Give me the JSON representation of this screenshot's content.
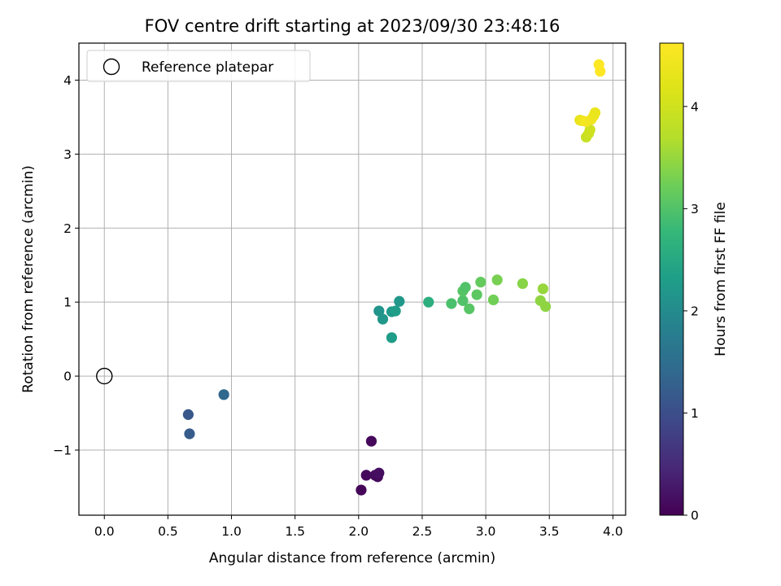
{
  "chart_data": {
    "type": "scatter",
    "title": "FOV centre drift starting at 2023/09/30 23:48:16",
    "xlabel": "Angular distance from reference (arcmin)",
    "ylabel": "Rotation from reference (arcmin)",
    "xlim": [
      -0.2,
      4.1
    ],
    "ylim": [
      -1.88,
      4.5
    ],
    "x_ticks": [
      0.0,
      0.5,
      1.0,
      1.5,
      2.0,
      2.5,
      3.0,
      3.5,
      4.0
    ],
    "x_tick_labels": [
      "0.0",
      "0.5",
      "1.0",
      "1.5",
      "2.0",
      "2.5",
      "3.0",
      "3.5",
      "4.0"
    ],
    "y_ticks": [
      -1,
      0,
      1,
      2,
      3,
      4
    ],
    "y_tick_labels": [
      "−1",
      "0",
      "1",
      "2",
      "3",
      "4"
    ],
    "grid": true,
    "legend": {
      "position": "top-left",
      "entries": [
        {
          "label": "Reference platepar",
          "marker": "open-circle"
        }
      ]
    },
    "reference_point": {
      "x": 0.0,
      "y": 0.0
    },
    "colorbar": {
      "label": "Hours from first FF file",
      "colormap": "viridis",
      "range": [
        0,
        4.62
      ],
      "ticks": [
        0,
        1,
        2,
        3,
        4
      ],
      "tick_labels": [
        "0",
        "1",
        "2",
        "3",
        "4"
      ]
    },
    "points": [
      {
        "x": 2.02,
        "y": -1.54,
        "c": 0.05
      },
      {
        "x": 2.06,
        "y": -1.34,
        "c": 0.1
      },
      {
        "x": 2.1,
        "y": -0.88,
        "c": 0.08
      },
      {
        "x": 2.13,
        "y": -1.34,
        "c": 0.12
      },
      {
        "x": 2.15,
        "y": -1.36,
        "c": 0.1
      },
      {
        "x": 2.16,
        "y": -1.31,
        "c": 0.15
      },
      {
        "x": 0.66,
        "y": -0.52,
        "c": 1.15
      },
      {
        "x": 0.67,
        "y": -0.78,
        "c": 1.2
      },
      {
        "x": 0.94,
        "y": -0.25,
        "c": 1.4
      },
      {
        "x": 2.16,
        "y": 0.88,
        "c": 2.15
      },
      {
        "x": 2.19,
        "y": 0.77,
        "c": 2.2
      },
      {
        "x": 2.26,
        "y": 0.52,
        "c": 2.3
      },
      {
        "x": 2.26,
        "y": 0.87,
        "c": 2.25
      },
      {
        "x": 2.29,
        "y": 0.88,
        "c": 2.3
      },
      {
        "x": 2.32,
        "y": 1.01,
        "c": 2.2
      },
      {
        "x": 2.55,
        "y": 1.0,
        "c": 2.6
      },
      {
        "x": 2.73,
        "y": 0.98,
        "c": 2.95
      },
      {
        "x": 2.82,
        "y": 1.02,
        "c": 3.0
      },
      {
        "x": 2.82,
        "y": 1.15,
        "c": 3.05
      },
      {
        "x": 2.84,
        "y": 1.2,
        "c": 3.0
      },
      {
        "x": 2.87,
        "y": 0.91,
        "c": 3.05
      },
      {
        "x": 2.93,
        "y": 1.1,
        "c": 3.1
      },
      {
        "x": 2.96,
        "y": 1.27,
        "c": 3.15
      },
      {
        "x": 3.06,
        "y": 1.03,
        "c": 3.25
      },
      {
        "x": 3.09,
        "y": 1.3,
        "c": 3.3
      },
      {
        "x": 3.29,
        "y": 1.25,
        "c": 3.4
      },
      {
        "x": 3.43,
        "y": 1.02,
        "c": 3.45
      },
      {
        "x": 3.45,
        "y": 1.18,
        "c": 3.5
      },
      {
        "x": 3.47,
        "y": 0.94,
        "c": 3.45
      },
      {
        "x": 3.79,
        "y": 3.23,
        "c": 3.9
      },
      {
        "x": 3.81,
        "y": 3.28,
        "c": 3.95
      },
      {
        "x": 3.82,
        "y": 3.33,
        "c": 4.0
      },
      {
        "x": 3.74,
        "y": 3.46,
        "c": 4.3
      },
      {
        "x": 3.76,
        "y": 3.45,
        "c": 4.4
      },
      {
        "x": 3.79,
        "y": 3.44,
        "c": 4.5
      },
      {
        "x": 3.83,
        "y": 3.47,
        "c": 4.45
      },
      {
        "x": 3.85,
        "y": 3.52,
        "c": 4.4
      },
      {
        "x": 3.86,
        "y": 3.56,
        "c": 4.35
      },
      {
        "x": 3.89,
        "y": 4.21,
        "c": 4.6
      },
      {
        "x": 3.9,
        "y": 4.12,
        "c": 4.62
      }
    ]
  }
}
